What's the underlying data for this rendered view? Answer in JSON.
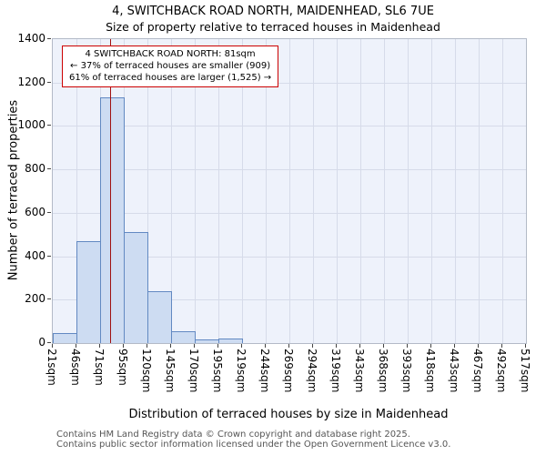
{
  "title": "4, SWITCHBACK ROAD NORTH, MAIDENHEAD, SL6 7UE",
  "subtitle": "Size of property relative to terraced houses in Maidenhead",
  "annotation": {
    "line1": "4 SWITCHBACK ROAD NORTH: 81sqm",
    "line2": "← 37% of terraced houses are smaller (909)",
    "line3": "61% of terraced houses are larger (1,525) →"
  },
  "footer": {
    "line1": "Contains HM Land Registry data © Crown copyright and database right 2025.",
    "line2": "Contains public sector information licensed under the Open Government Licence v3.0."
  },
  "chart_data": {
    "type": "bar",
    "title": "4, SWITCHBACK ROAD NORTH, MAIDENHEAD, SL6 7UE",
    "subtitle": "Size of property relative to terraced houses in Maidenhead",
    "xlabel": "Distribution of terraced houses by size in Maidenhead",
    "ylabel": "Number of terraced properties",
    "ylim": [
      0,
      1400
    ],
    "y_ticks": [
      0,
      200,
      400,
      600,
      800,
      1000,
      1200,
      1400
    ],
    "x_tick_labels": [
      "21sqm",
      "46sqm",
      "71sqm",
      "95sqm",
      "120sqm",
      "145sqm",
      "170sqm",
      "195sqm",
      "219sqm",
      "244sqm",
      "269sqm",
      "294sqm",
      "319sqm",
      "343sqm",
      "368sqm",
      "393sqm",
      "418sqm",
      "443sqm",
      "467sqm",
      "492sqm",
      "517sqm"
    ],
    "bin_edges_sqm": [
      21,
      46,
      71,
      95,
      120,
      145,
      170,
      195,
      219,
      244,
      269,
      294,
      319,
      343,
      368,
      393,
      418,
      443,
      467,
      492,
      517
    ],
    "values": [
      45,
      470,
      1130,
      510,
      240,
      55,
      15,
      20,
      0,
      0,
      0,
      0,
      0,
      0,
      0,
      0,
      0,
      0,
      0,
      0
    ],
    "marker_value_sqm": 81,
    "grid": true,
    "colors": {
      "bar_fill": "#cddcf2",
      "bar_border": "#6289c2",
      "marker_line": "#a01010",
      "annotation_border": "#cc0000",
      "plot_bg": "#eef2fb",
      "grid": "#d6dbe9"
    }
  }
}
